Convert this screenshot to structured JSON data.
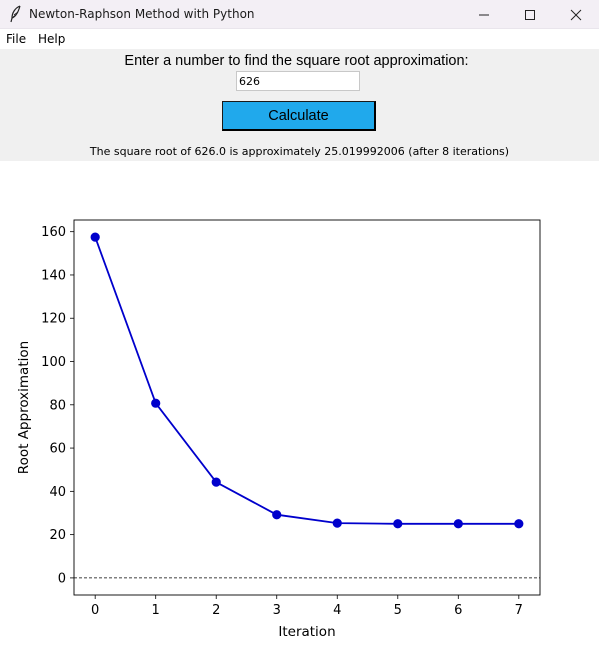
{
  "window": {
    "title": "Newton-Raphson Method with Python",
    "icon": "feather-icon"
  },
  "menu": {
    "items": [
      {
        "label": "File"
      },
      {
        "label": "Help"
      }
    ]
  },
  "form": {
    "prompt": "Enter a number to find the square root approximation:",
    "input_value": "626",
    "button_label": "Calculate",
    "button_color": "#20a9ec",
    "result": "The square root of 626.0 is approximately 25.019992006 (after 8 iterations)"
  },
  "chart_data": {
    "type": "line",
    "xlabel": "Iteration",
    "ylabel": "Root Approximation",
    "x": [
      0,
      1,
      2,
      3,
      4,
      5,
      6,
      7
    ],
    "series": [
      {
        "values": [
          157.5,
          80.74,
          44.25,
          29.2,
          25.32,
          25.02,
          25.02,
          25.02
        ],
        "color": "#0000cc"
      }
    ],
    "xticks": [
      "0",
      "1",
      "2",
      "3",
      "4",
      "5",
      "6",
      "7"
    ],
    "yticks": [
      "0",
      "20",
      "40",
      "60",
      "80",
      "100",
      "120",
      "140",
      "160"
    ],
    "xlim": [
      -0.35,
      7.35
    ],
    "ylim": [
      -7.9,
      165.4
    ],
    "reference_line": {
      "y": 0,
      "style": "dashed",
      "color": "#000000"
    },
    "grid": false,
    "legend": false
  }
}
